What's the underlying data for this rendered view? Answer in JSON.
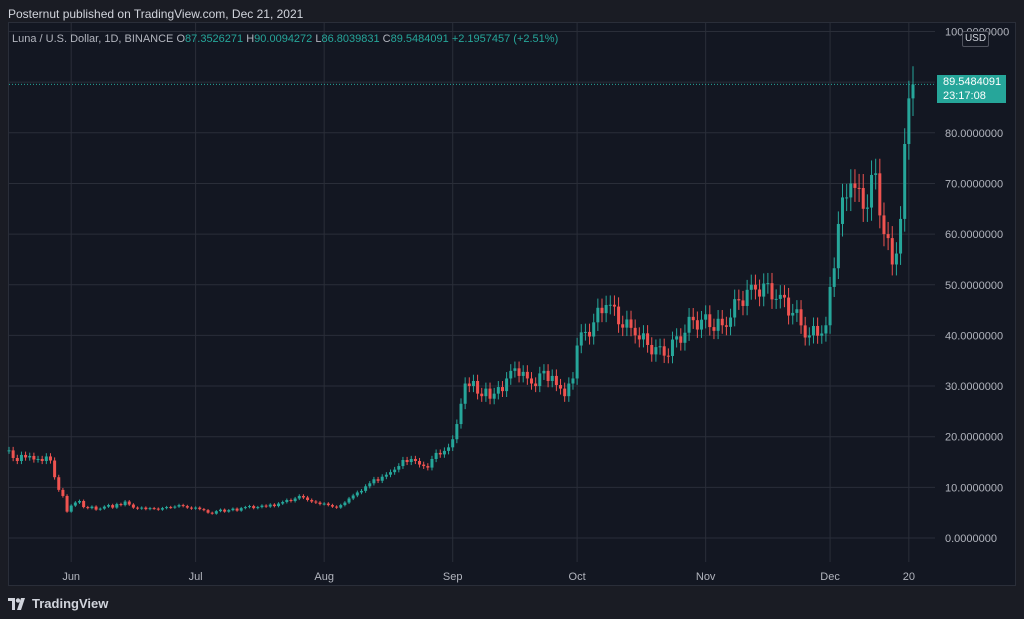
{
  "header": {
    "publisher": "Posternut published on TradingView.com, Dec 21, 2021"
  },
  "legend": {
    "symbol": "Luna / U.S. Dollar, 1D, BINANCE",
    "open_label": "O",
    "open": "87.3526271",
    "high_label": "H",
    "high": "90.0094272",
    "low_label": "L",
    "low": "86.8039831",
    "close_label": "C",
    "close": "89.5484091",
    "change": "+2.1957457 (+2.51%)"
  },
  "currency_badge": "USD",
  "last_price": {
    "price": "89.5484091",
    "countdown": "23:17:08"
  },
  "footer": {
    "brand": "TradingView"
  },
  "colors": {
    "up": "#26a69a",
    "down": "#ef5350",
    "background": "#131722",
    "grid": "#2a2e39",
    "text": "#b2b5be"
  },
  "chart_data": {
    "type": "candlestick",
    "title": "Luna / U.S. Dollar, 1D, BINANCE",
    "x_tick_labels": [
      "Jun",
      "Jul",
      "Aug",
      "Sep",
      "Oct",
      "Nov",
      "Dec",
      "20"
    ],
    "y_tick_labels": [
      "100.0000000",
      "90.0000000",
      "80.0000000",
      "70.0000000",
      "60.0000000",
      "50.0000000",
      "40.0000000",
      "30.0000000",
      "20.0000000",
      "10.0000000",
      "0.0000000"
    ],
    "ylim": [
      -5,
      100
    ],
    "grid": true,
    "close_series": [
      {
        "date": "2021-05-17",
        "close": 17.3
      },
      {
        "date": "2021-05-18",
        "close": 15.8
      },
      {
        "date": "2021-05-19",
        "close": 15.2
      },
      {
        "date": "2021-05-20",
        "close": 16.4
      },
      {
        "date": "2021-05-21",
        "close": 15.9
      },
      {
        "date": "2021-05-22",
        "close": 16.2
      },
      {
        "date": "2021-05-23",
        "close": 15.5
      },
      {
        "date": "2021-05-24",
        "close": 15.6
      },
      {
        "date": "2021-05-25",
        "close": 15.2
      },
      {
        "date": "2021-05-26",
        "close": 16.1
      },
      {
        "date": "2021-05-27",
        "close": 15.3
      },
      {
        "date": "2021-05-28",
        "close": 12.0
      },
      {
        "date": "2021-05-29",
        "close": 9.5
      },
      {
        "date": "2021-05-30",
        "close": 8.3
      },
      {
        "date": "2021-05-31",
        "close": 5.2
      },
      {
        "date": "2021-06-01",
        "close": 6.4
      },
      {
        "date": "2021-06-02",
        "close": 7.0
      },
      {
        "date": "2021-06-03",
        "close": 7.3
      },
      {
        "date": "2021-06-04",
        "close": 6.1
      },
      {
        "date": "2021-06-05",
        "close": 5.9
      },
      {
        "date": "2021-06-06",
        "close": 6.2
      },
      {
        "date": "2021-06-07",
        "close": 5.6
      },
      {
        "date": "2021-06-08",
        "close": 5.8
      },
      {
        "date": "2021-06-09",
        "close": 6.2
      },
      {
        "date": "2021-06-10",
        "close": 6.5
      },
      {
        "date": "2021-06-11",
        "close": 6.0
      },
      {
        "date": "2021-06-12",
        "close": 6.7
      },
      {
        "date": "2021-06-13",
        "close": 6.5
      },
      {
        "date": "2021-06-14",
        "close": 7.2
      },
      {
        "date": "2021-06-15",
        "close": 6.6
      },
      {
        "date": "2021-06-16",
        "close": 6.0
      },
      {
        "date": "2021-06-17",
        "close": 5.8
      },
      {
        "date": "2021-06-18",
        "close": 6.0
      },
      {
        "date": "2021-06-19",
        "close": 5.7
      },
      {
        "date": "2021-06-20",
        "close": 5.9
      },
      {
        "date": "2021-06-21",
        "close": 5.8
      },
      {
        "date": "2021-06-22",
        "close": 5.6
      },
      {
        "date": "2021-06-23",
        "close": 5.9
      },
      {
        "date": "2021-06-24",
        "close": 6.1
      },
      {
        "date": "2021-06-25",
        "close": 6.0
      },
      {
        "date": "2021-06-26",
        "close": 6.2
      },
      {
        "date": "2021-06-27",
        "close": 6.5
      },
      {
        "date": "2021-06-28",
        "close": 6.3
      },
      {
        "date": "2021-06-29",
        "close": 6.0
      },
      {
        "date": "2021-06-30",
        "close": 5.8
      },
      {
        "date": "2021-07-01",
        "close": 6.0
      },
      {
        "date": "2021-07-02",
        "close": 5.7
      },
      {
        "date": "2021-07-03",
        "close": 5.5
      },
      {
        "date": "2021-07-04",
        "close": 5.0
      },
      {
        "date": "2021-07-05",
        "close": 4.8
      },
      {
        "date": "2021-07-06",
        "close": 5.3
      },
      {
        "date": "2021-07-07",
        "close": 5.6
      },
      {
        "date": "2021-07-08",
        "close": 5.2
      },
      {
        "date": "2021-07-09",
        "close": 5.5
      },
      {
        "date": "2021-07-10",
        "close": 5.8
      },
      {
        "date": "2021-07-11",
        "close": 5.4
      },
      {
        "date": "2021-07-12",
        "close": 5.9
      },
      {
        "date": "2021-07-13",
        "close": 6.1
      },
      {
        "date": "2021-07-14",
        "close": 6.3
      },
      {
        "date": "2021-07-15",
        "close": 5.9
      },
      {
        "date": "2021-07-16",
        "close": 6.1
      },
      {
        "date": "2021-07-17",
        "close": 6.4
      },
      {
        "date": "2021-07-18",
        "close": 6.2
      },
      {
        "date": "2021-07-19",
        "close": 6.6
      },
      {
        "date": "2021-07-20",
        "close": 6.3
      },
      {
        "date": "2021-07-21",
        "close": 6.8
      },
      {
        "date": "2021-07-22",
        "close": 7.1
      },
      {
        "date": "2021-07-23",
        "close": 7.5
      },
      {
        "date": "2021-07-24",
        "close": 7.3
      },
      {
        "date": "2021-07-25",
        "close": 7.8
      },
      {
        "date": "2021-07-26",
        "close": 8.3
      },
      {
        "date": "2021-07-27",
        "close": 8.0
      },
      {
        "date": "2021-07-28",
        "close": 7.5
      },
      {
        "date": "2021-07-29",
        "close": 7.2
      },
      {
        "date": "2021-07-30",
        "close": 7.0
      },
      {
        "date": "2021-07-31",
        "close": 6.7
      },
      {
        "date": "2021-08-01",
        "close": 6.8
      },
      {
        "date": "2021-08-02",
        "close": 6.5
      },
      {
        "date": "2021-08-03",
        "close": 6.2
      },
      {
        "date": "2021-08-04",
        "close": 6.0
      },
      {
        "date": "2021-08-05",
        "close": 6.5
      },
      {
        "date": "2021-08-06",
        "close": 7.0
      },
      {
        "date": "2021-08-07",
        "close": 7.8
      },
      {
        "date": "2021-08-08",
        "close": 8.4
      },
      {
        "date": "2021-08-09",
        "close": 9.0
      },
      {
        "date": "2021-08-10",
        "close": 9.3
      },
      {
        "date": "2021-08-11",
        "close": 10.2
      },
      {
        "date": "2021-08-12",
        "close": 10.8
      },
      {
        "date": "2021-08-13",
        "close": 11.6
      },
      {
        "date": "2021-08-14",
        "close": 11.3
      },
      {
        "date": "2021-08-15",
        "close": 12.1
      },
      {
        "date": "2021-08-16",
        "close": 12.5
      },
      {
        "date": "2021-08-17",
        "close": 13.0
      },
      {
        "date": "2021-08-18",
        "close": 13.5
      },
      {
        "date": "2021-08-19",
        "close": 14.2
      },
      {
        "date": "2021-08-20",
        "close": 15.4
      },
      {
        "date": "2021-08-21",
        "close": 15.0
      },
      {
        "date": "2021-08-22",
        "close": 15.6
      },
      {
        "date": "2021-08-23",
        "close": 15.2
      },
      {
        "date": "2021-08-24",
        "close": 14.5
      },
      {
        "date": "2021-08-25",
        "close": 14.2
      },
      {
        "date": "2021-08-26",
        "close": 13.9
      },
      {
        "date": "2021-08-27",
        "close": 15.6
      },
      {
        "date": "2021-08-28",
        "close": 16.8
      },
      {
        "date": "2021-08-29",
        "close": 16.5
      },
      {
        "date": "2021-08-30",
        "close": 17.2
      },
      {
        "date": "2021-08-31",
        "close": 17.9
      },
      {
        "date": "2021-09-01",
        "close": 19.5
      },
      {
        "date": "2021-09-02",
        "close": 22.5
      },
      {
        "date": "2021-09-03",
        "close": 26.5
      },
      {
        "date": "2021-09-04",
        "close": 30.5
      },
      {
        "date": "2021-09-05",
        "close": 30.0
      },
      {
        "date": "2021-09-06",
        "close": 31.0
      },
      {
        "date": "2021-09-07",
        "close": 28.5
      },
      {
        "date": "2021-09-08",
        "close": 28.0
      },
      {
        "date": "2021-09-09",
        "close": 29.5
      },
      {
        "date": "2021-09-10",
        "close": 27.5
      },
      {
        "date": "2021-09-11",
        "close": 28.5
      },
      {
        "date": "2021-09-12",
        "close": 29.8
      },
      {
        "date": "2021-09-13",
        "close": 29.0
      },
      {
        "date": "2021-09-14",
        "close": 31.5
      },
      {
        "date": "2021-09-15",
        "close": 33.0
      },
      {
        "date": "2021-09-16",
        "close": 33.5
      },
      {
        "date": "2021-09-17",
        "close": 32.0
      },
      {
        "date": "2021-09-18",
        "close": 32.8
      },
      {
        "date": "2021-09-19",
        "close": 31.5
      },
      {
        "date": "2021-09-20",
        "close": 30.5
      },
      {
        "date": "2021-09-21",
        "close": 30.0
      },
      {
        "date": "2021-09-22",
        "close": 32.5
      },
      {
        "date": "2021-09-23",
        "close": 33.0
      },
      {
        "date": "2021-09-24",
        "close": 31.0
      },
      {
        "date": "2021-09-25",
        "close": 32.0
      },
      {
        "date": "2021-09-26",
        "close": 30.2
      },
      {
        "date": "2021-09-27",
        "close": 29.5
      },
      {
        "date": "2021-09-28",
        "close": 28.0
      },
      {
        "date": "2021-09-29",
        "close": 30.5
      },
      {
        "date": "2021-09-30",
        "close": 31.5
      }
    ],
    "series_note": "Daily candles from mid-May to Dec 21, 2021; close values rising from ~15 to 89.55"
  }
}
